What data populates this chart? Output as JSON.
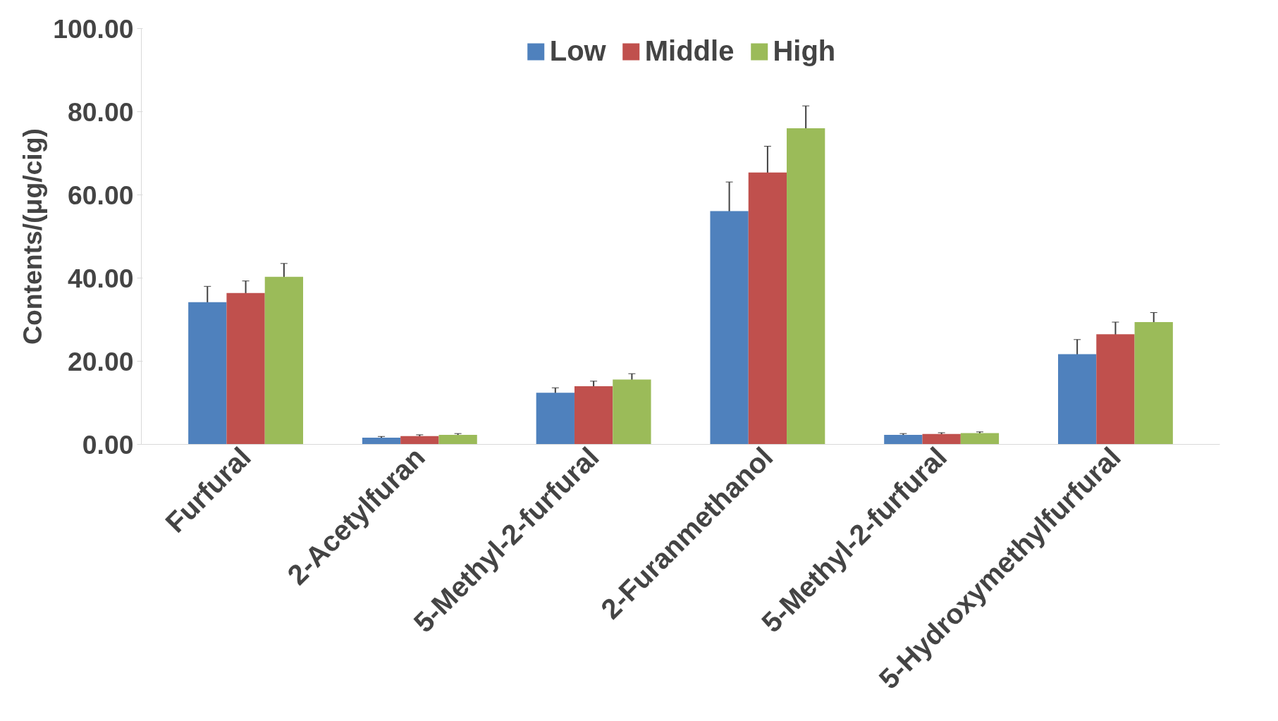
{
  "chart_data": {
    "type": "bar",
    "ylabel": "Contents/(μg/cig)",
    "categories": [
      "Furfural",
      "2-Acetylfuran",
      "5-Methyl-2-furfural",
      "2-Furanmethanol",
      "5-Methyl-2-furfural",
      "5-Hydroxymethylfurfural"
    ],
    "series": [
      {
        "name": "Low",
        "color": "#4f81bd",
        "values": [
          34.2,
          1.6,
          12.4,
          56.1,
          2.3,
          21.7
        ],
        "errors": [
          3.8,
          0.3,
          1.2,
          7.0,
          0.3,
          3.5
        ]
      },
      {
        "name": "Middle",
        "color": "#c0504d",
        "values": [
          36.4,
          2.0,
          14.0,
          65.4,
          2.5,
          26.5
        ],
        "errors": [
          2.9,
          0.3,
          1.2,
          6.3,
          0.3,
          2.9
        ]
      },
      {
        "name": "High",
        "color": "#9bbb59",
        "values": [
          40.3,
          2.3,
          15.6,
          76.0,
          2.7,
          29.4
        ],
        "errors": [
          3.2,
          0.3,
          1.4,
          5.4,
          0.3,
          2.3
        ]
      }
    ],
    "ylim": [
      0,
      100
    ],
    "yticks": [
      {
        "value": 0,
        "label": "0.00"
      },
      {
        "value": 20,
        "label": "20.00"
      },
      {
        "value": 40,
        "label": "40.00"
      },
      {
        "value": 60,
        "label": "60.00"
      },
      {
        "value": 80,
        "label": "80.00"
      },
      {
        "value": 100,
        "label": "100.00"
      }
    ],
    "grid": false,
    "legend": "top"
  }
}
